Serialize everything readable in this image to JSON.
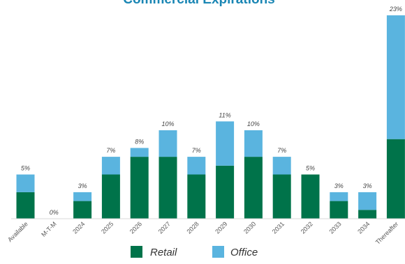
{
  "chart_data": {
    "type": "bar",
    "stacked": true,
    "title": "Commercial Expirations",
    "categories": [
      "Available",
      "M-T-M",
      "2024",
      "2025",
      "2026",
      "2027",
      "2028",
      "2029",
      "2030",
      "2031",
      "2032",
      "2033",
      "2034",
      "Thereafter"
    ],
    "series": [
      {
        "name": "Retail",
        "color": "#00734a",
        "values": [
          3.0,
          0,
          2.0,
          5.0,
          7.0,
          7.0,
          5.0,
          6.0,
          7.0,
          5.0,
          5.0,
          2.0,
          1.0,
          9.0
        ]
      },
      {
        "name": "Office",
        "color": "#5ab4df",
        "values": [
          2.0,
          0,
          1.0,
          2.0,
          1.0,
          3.0,
          2.0,
          5.0,
          3.0,
          2.0,
          0,
          1.0,
          2.0,
          14.0
        ]
      }
    ],
    "data_labels": [
      "5%",
      "0%",
      "3%",
      "7%",
      "8%",
      "10%",
      "7%",
      "11%",
      "10%",
      "7%",
      "5%",
      "3%",
      "3%",
      "23%"
    ],
    "ylim": [
      0,
      23
    ],
    "grid": false,
    "legend_position": "bottom"
  }
}
